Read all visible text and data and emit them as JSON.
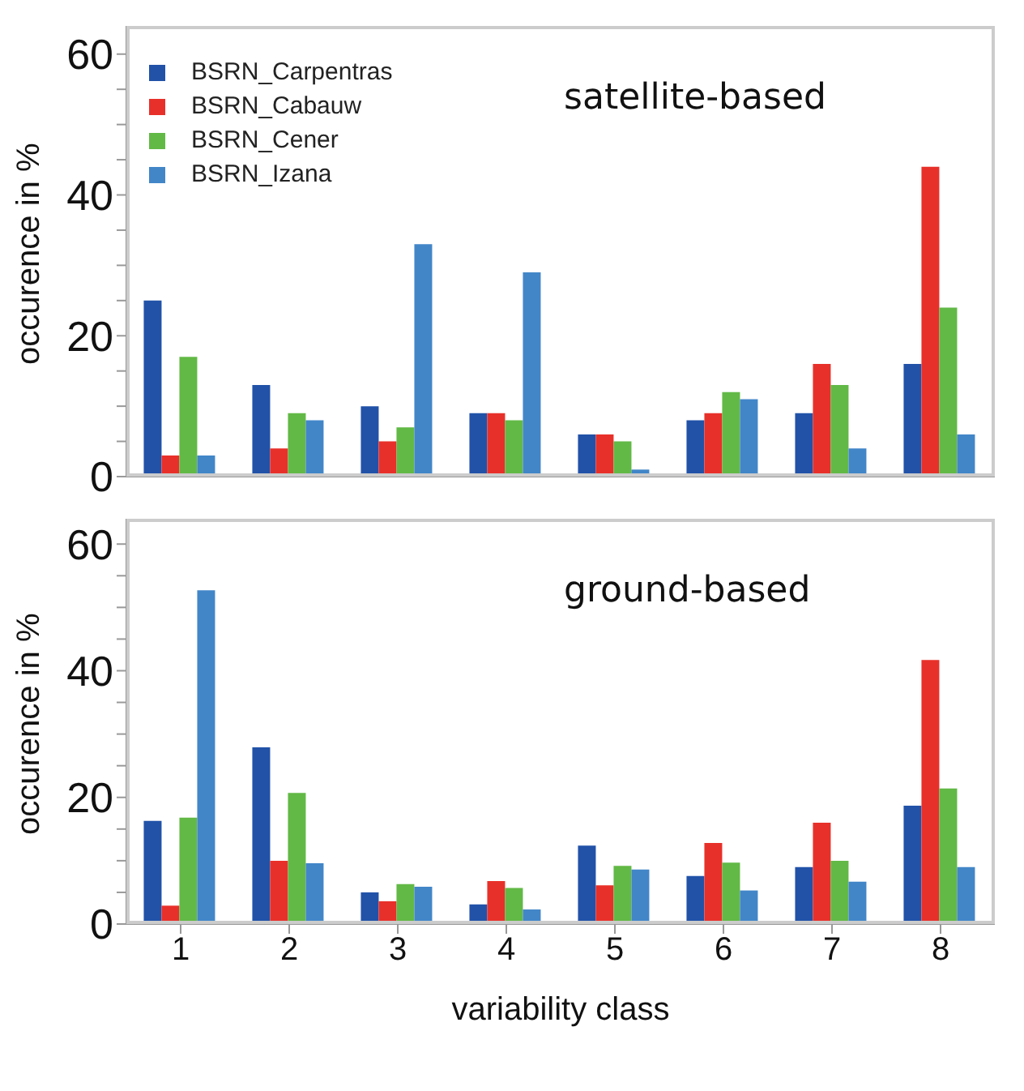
{
  "chart_data": [
    {
      "type": "bar",
      "title": "satellite-based",
      "ylabel": "occurence in %",
      "categories": [
        "1",
        "2",
        "3",
        "4",
        "5",
        "6",
        "7",
        "8"
      ],
      "series": [
        {
          "name": "BSRN_Carpentras",
          "color": "#2152a8",
          "values": [
            25,
            13,
            10,
            9,
            6,
            8,
            9,
            16
          ]
        },
        {
          "name": "BSRN_Cabauw",
          "color": "#e8302a",
          "values": [
            3,
            4,
            5,
            9,
            6,
            9,
            16,
            44
          ]
        },
        {
          "name": "BSRN_Cener",
          "color": "#62b946",
          "values": [
            17,
            9,
            7,
            8,
            5,
            12,
            13,
            24
          ]
        },
        {
          "name": "BSRN_Izana",
          "color": "#4286c8",
          "values": [
            3,
            8,
            33,
            29,
            1,
            11,
            4,
            6
          ]
        }
      ],
      "ylim": [
        0,
        64
      ],
      "yticks": [
        0,
        {
          "value": 5,
          "label": null
        },
        {
          "value": 10,
          "label": null
        },
        {
          "value": 15,
          "label": null
        },
        20,
        {
          "value": 25,
          "label": null
        },
        {
          "value": 30,
          "label": null
        },
        {
          "value": 35,
          "label": null
        },
        40,
        {
          "value": 45,
          "label": null
        },
        {
          "value": 50,
          "label": null
        },
        {
          "value": 55,
          "label": null
        },
        60
      ],
      "grid": false,
      "legend": "top left",
      "tick_labels": "y"
    },
    {
      "type": "bar",
      "title": "ground-based",
      "xlabel": "variability class",
      "ylabel": "occurence in %",
      "categories": [
        "1",
        "2",
        "3",
        "4",
        "5",
        "6",
        "7",
        "8"
      ],
      "series": [
        {
          "color": "#2152a8",
          "values": [
            16.3,
            27.9,
            5,
            3.1,
            12.4,
            7.6,
            9,
            18.7
          ]
        },
        {
          "color": "#e8302a",
          "values": [
            2.9,
            10,
            3.6,
            6.8,
            6.1,
            12.8,
            16,
            41.7
          ]
        },
        {
          "color": "#62b946",
          "values": [
            16.8,
            20.7,
            6.3,
            5.7,
            9.2,
            9.7,
            10,
            21.4
          ]
        },
        {
          "color": "#4286c8",
          "values": [
            52.7,
            9.6,
            5.9,
            2.3,
            8.6,
            5.3,
            6.7,
            9
          ]
        }
      ],
      "ylim": [
        0,
        64
      ],
      "yticks": [
        0,
        {
          "value": 5,
          "label": null
        },
        {
          "value": 10,
          "label": null
        },
        {
          "value": 15,
          "label": null
        },
        20,
        {
          "value": 25,
          "label": null
        },
        {
          "value": 30,
          "label": null
        },
        {
          "value": 35,
          "label": null
        },
        40,
        {
          "value": 45,
          "label": null
        },
        {
          "value": 50,
          "label": null
        },
        {
          "value": 55,
          "label": null
        },
        60
      ],
      "grid": false,
      "legend": false
    }
  ]
}
